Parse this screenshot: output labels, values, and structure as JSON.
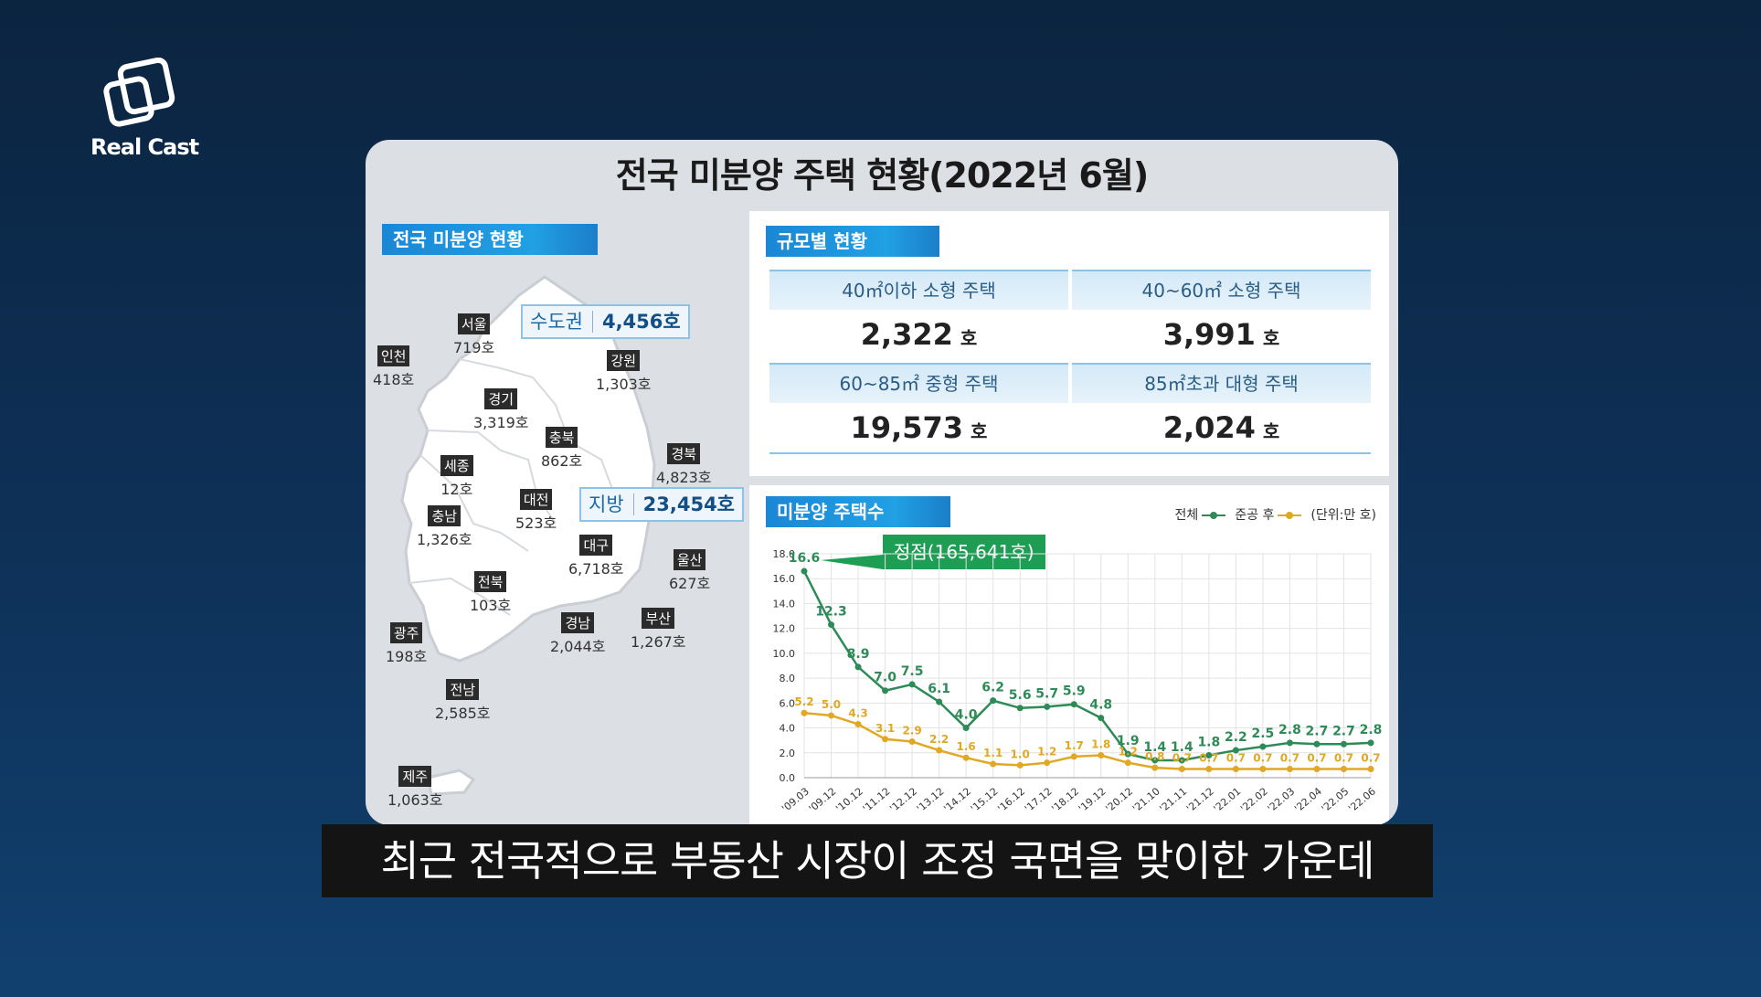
{
  "logo": {
    "text": "Real Cast"
  },
  "panel_title": "전국 미분양 주택 현황(2022년 6월)",
  "map_section": {
    "tag": "전국 미분양 현황",
    "capital_area": {
      "label": "수도권",
      "value": "4,456호"
    },
    "local_area": {
      "label": "지방",
      "value": "23,454호"
    },
    "regions": [
      {
        "name": "서울",
        "value": "719호"
      },
      {
        "name": "인천",
        "value": "418호"
      },
      {
        "name": "경기",
        "value": "3,319호"
      },
      {
        "name": "강원",
        "value": "1,303호"
      },
      {
        "name": "충북",
        "value": "862호"
      },
      {
        "name": "경북",
        "value": "4,823호"
      },
      {
        "name": "세종",
        "value": "12호"
      },
      {
        "name": "대전",
        "value": "523호"
      },
      {
        "name": "충남",
        "value": "1,326호"
      },
      {
        "name": "대구",
        "value": "6,718호"
      },
      {
        "name": "울산",
        "value": "627호"
      },
      {
        "name": "전북",
        "value": "103호"
      },
      {
        "name": "경남",
        "value": "2,044호"
      },
      {
        "name": "부산",
        "value": "1,267호"
      },
      {
        "name": "광주",
        "value": "198호"
      },
      {
        "name": "전남",
        "value": "2,585호"
      },
      {
        "name": "제주",
        "value": "1,063호"
      }
    ]
  },
  "size_section": {
    "tag": "규모별 현황",
    "unit": "호",
    "items": [
      {
        "label": "40㎡이하 소형 주택",
        "value": "2,322"
      },
      {
        "label": "40~60㎡ 소형 주택",
        "value": "3,991"
      },
      {
        "label": "60~85㎡ 중형 주택",
        "value": "19,573"
      },
      {
        "label": "85㎡초과 대형 주택",
        "value": "2,024"
      }
    ]
  },
  "chart_section": {
    "tag": "미분양 주택수",
    "legend_unit": "(단위:만 호)",
    "peak_label": "정점(165,641호)",
    "colors": {
      "total": "#2e8b57",
      "completed": "#e0a823",
      "grid": "#e3e3e3"
    }
  },
  "chart_data": {
    "type": "line",
    "categories": [
      "'09.03",
      "'09.12",
      "'10.12",
      "'11.12",
      "'12.12",
      "'13.12",
      "'14.12",
      "'15.12",
      "'16.12",
      "'17.12",
      "'18.12",
      "'19.12",
      "'20.12",
      "'21.10",
      "'21.11",
      "'21.12",
      "'22.01",
      "'22.02",
      "'22.03",
      "'22.04",
      "'22.05",
      "'22.06"
    ],
    "series": [
      {
        "name": "전체",
        "values": [
          16.6,
          12.3,
          8.9,
          7.0,
          7.5,
          6.1,
          4.0,
          6.2,
          5.6,
          5.7,
          5.9,
          4.8,
          1.9,
          1.4,
          1.4,
          1.8,
          2.2,
          2.5,
          2.8,
          2.7,
          2.7,
          2.8
        ]
      },
      {
        "name": "준공 후",
        "values": [
          5.2,
          5.0,
          4.3,
          3.1,
          2.9,
          2.2,
          1.6,
          1.1,
          1.0,
          1.2,
          1.7,
          1.8,
          1.2,
          0.8,
          0.7,
          0.7,
          0.7,
          0.7,
          0.7,
          0.7,
          0.7,
          0.7
        ]
      }
    ],
    "yticks": [
      "0.0",
      "2.0",
      "4.0",
      "6.0",
      "8.0",
      "10.0",
      "12.0",
      "14.0",
      "16.0",
      "18.0"
    ],
    "ylim": [
      0,
      18
    ],
    "grid": true,
    "legend": "top-right"
  },
  "subtitle": "최근 전국적으로 부동산 시장이 조정 국면을 맞이한 가운데"
}
